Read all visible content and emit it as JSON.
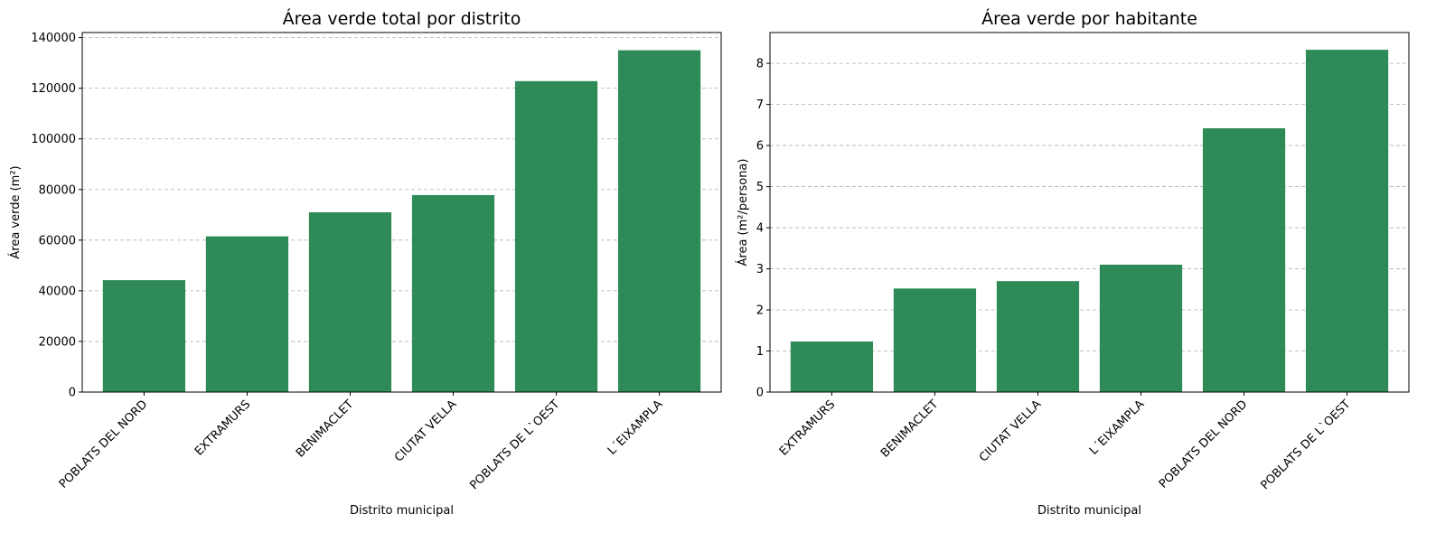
{
  "bar_color": "#2e8b57",
  "grid_color": "#b0b0b0",
  "chart_data": [
    {
      "type": "bar",
      "title": "Área verde total por distrito",
      "xlabel": "Distrito municipal",
      "ylabel": "Área verde (m²)",
      "categories": [
        "POBLATS DEL NORD",
        "EXTRAMURS",
        "BENIMACLET",
        "CIUTAT VELLA",
        "POBLATS DE L`OEST",
        "L´EIXAMPLA"
      ],
      "values": [
        44200,
        61500,
        71000,
        77800,
        122800,
        135000
      ],
      "ylim": [
        0,
        142000
      ],
      "yticks": [
        0,
        20000,
        40000,
        60000,
        80000,
        100000,
        120000,
        140000
      ],
      "grid": "y-dashed"
    },
    {
      "type": "bar",
      "title": "Área verde por habitante",
      "xlabel": "Distrito municipal",
      "ylabel": "Área (m²/persona)",
      "categories": [
        "EXTRAMURS",
        "BENIMACLET",
        "CIUTAT VELLA",
        "L´EIXAMPLA",
        "POBLATS DEL NORD",
        "POBLATS DE L`OEST"
      ],
      "values": [
        1.23,
        2.52,
        2.7,
        3.1,
        6.42,
        8.33
      ],
      "ylim": [
        0,
        8.75
      ],
      "yticks": [
        0,
        1,
        2,
        3,
        4,
        5,
        6,
        7,
        8
      ],
      "grid": "y-dashed"
    }
  ]
}
